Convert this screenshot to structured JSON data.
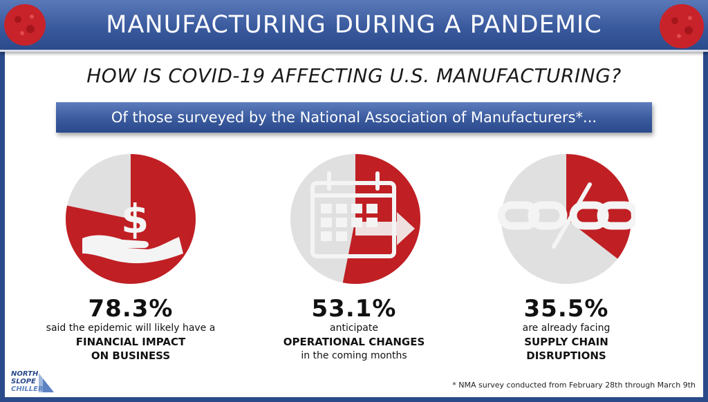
{
  "header": {
    "title": "MANUFACTURING DURING A PANDEMIC",
    "subtitle": "HOW IS COVID-19 AFFECTING U.S. MANUFACTURING?",
    "survey_banner": "Of those surveyed by the National Association of Manufacturers*..."
  },
  "colors": {
    "accent_red": "#c01f24",
    "pie_grey": "#e0e0e0",
    "banner_blue": "#3a5a9e",
    "icon_white": "#f4f4f4"
  },
  "chart_data": [
    {
      "type": "pie",
      "title": "",
      "values": [
        78.3,
        21.7
      ],
      "label": "78.3%",
      "text_line1": "said the epidemic will likely have a",
      "text_line2": "FINANCIAL IMPACT",
      "text_line3": "ON BUSINESS",
      "icon": "hand-holding-dollar-icon"
    },
    {
      "type": "pie",
      "title": "",
      "values": [
        53.1,
        46.9
      ],
      "label": "53.1%",
      "text_line1": "anticipate",
      "text_line2": "OPERATIONAL CHANGES",
      "text_line3": "in the coming months",
      "icon": "calendar-arrow-icon"
    },
    {
      "type": "pie",
      "title": "",
      "values": [
        35.5,
        64.5
      ],
      "label": "35.5%",
      "text_line1": "are already facing",
      "text_line2": "SUPPLY CHAIN",
      "text_line3": "DISRUPTIONS",
      "icon": "broken-chain-icon"
    }
  ],
  "logo": {
    "line1": "NORTH",
    "line2": "SLOPE",
    "line3": "CHILLERS"
  },
  "footnote": "* NMA survey conducted from February 28th through March 9th"
}
